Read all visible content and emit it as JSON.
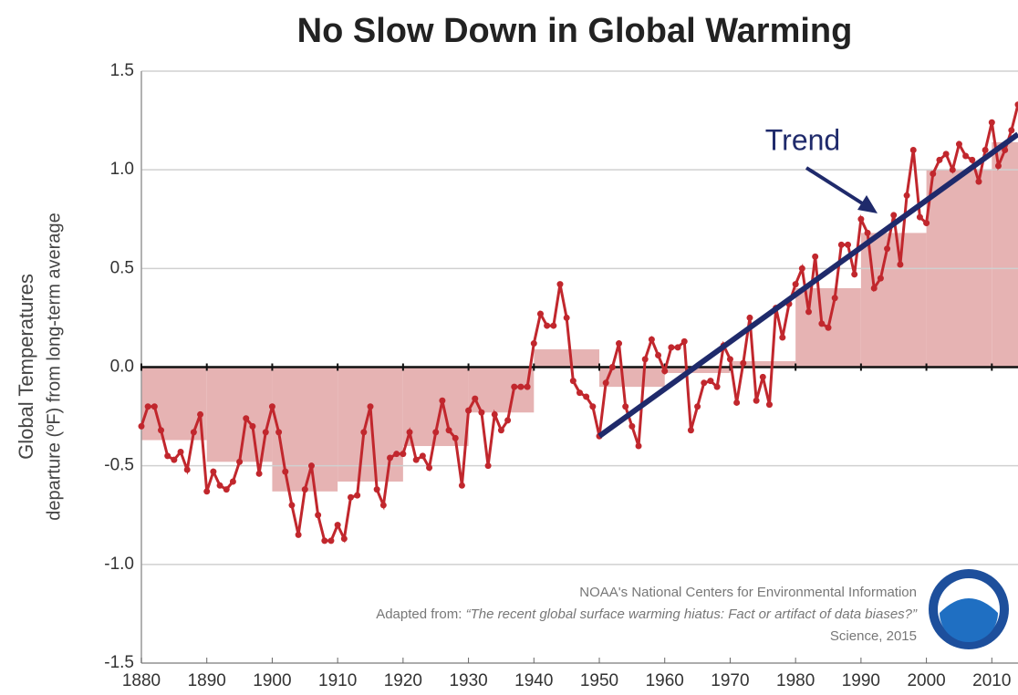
{
  "chart_data": {
    "type": "line",
    "title": "No Slow Down in Global Warming",
    "y_label": [
      "Global Temperatures",
      "departure (ºF) from long-term average"
    ],
    "xlim": [
      1880,
      2014
    ],
    "xticks": [
      1880,
      1890,
      1900,
      1910,
      1920,
      1930,
      1940,
      1950,
      1960,
      1970,
      1980,
      1990,
      2000,
      2010
    ],
    "ylim": [
      -1.5,
      1.5
    ],
    "yticks": [
      1.5,
      {
        "value": 1,
        "label": "1.0"
      },
      0.5,
      {
        "value": 0,
        "label": "0.0"
      },
      -0.5,
      {
        "value": -1,
        "label": "-1.0"
      },
      -1.5
    ],
    "grid": true,
    "color": "#c1272d",
    "x": [
      1880,
      1881,
      1882,
      1883,
      1884,
      1885,
      1886,
      1887,
      1888,
      1889,
      1890,
      1891,
      1892,
      1893,
      1894,
      1895,
      1896,
      1897,
      1898,
      1899,
      1900,
      1901,
      1902,
      1903,
      1904,
      1905,
      1906,
      1907,
      1908,
      1909,
      1910,
      1911,
      1912,
      1913,
      1914,
      1915,
      1916,
      1917,
      1918,
      1919,
      1920,
      1921,
      1922,
      1923,
      1924,
      1925,
      1926,
      1927,
      1928,
      1929,
      1930,
      1931,
      1932,
      1933,
      1934,
      1935,
      1936,
      1937,
      1938,
      1939,
      1940,
      1941,
      1942,
      1943,
      1944,
      1945,
      1946,
      1947,
      1948,
      1949,
      1950,
      1951,
      1952,
      1953,
      1954,
      1955,
      1956,
      1957,
      1958,
      1959,
      1960,
      1961,
      1962,
      1963,
      1964,
      1965,
      1966,
      1967,
      1968,
      1969,
      1970,
      1971,
      1972,
      1973,
      1974,
      1975,
      1976,
      1977,
      1978,
      1979,
      1980,
      1981,
      1982,
      1983,
      1984,
      1985,
      1986,
      1987,
      1988,
      1989,
      1990,
      1991,
      1992,
      1993,
      1994,
      1995,
      1996,
      1997,
      1998,
      1999,
      2000,
      2001,
      2002,
      2003,
      2004,
      2005,
      2006,
      2007,
      2008,
      2009,
      2010,
      2011,
      2012,
      2013,
      2014
    ],
    "values": [
      -0.3,
      -0.2,
      -0.2,
      -0.32,
      -0.45,
      -0.47,
      -0.43,
      -0.52,
      -0.33,
      -0.24,
      -0.63,
      -0.53,
      -0.6,
      -0.62,
      -0.58,
      -0.48,
      -0.26,
      -0.3,
      -0.54,
      -0.33,
      -0.2,
      -0.33,
      -0.53,
      -0.7,
      -0.85,
      -0.62,
      -0.5,
      -0.75,
      -0.88,
      -0.88,
      -0.8,
      -0.87,
      -0.66,
      -0.65,
      -0.33,
      -0.2,
      -0.62,
      -0.7,
      -0.46,
      -0.44,
      -0.44,
      -0.33,
      -0.47,
      -0.45,
      -0.51,
      -0.33,
      -0.17,
      -0.32,
      -0.36,
      -0.6,
      -0.22,
      -0.16,
      -0.23,
      -0.5,
      -0.24,
      -0.32,
      -0.27,
      -0.1,
      -0.1,
      -0.1,
      0.12,
      0.27,
      0.21,
      0.21,
      0.42,
      0.25,
      -0.07,
      -0.13,
      -0.15,
      -0.2,
      -0.35,
      -0.08,
      0,
      0.12,
      -0.2,
      -0.3,
      -0.4,
      0.04,
      0.14,
      0.06,
      -0.02,
      0.1,
      0.1,
      0.13,
      -0.32,
      -0.2,
      -0.08,
      -0.07,
      -0.1,
      0.11,
      0.04,
      -0.18,
      0.02,
      0.25,
      -0.17,
      -0.05,
      -0.19,
      0.3,
      0.15,
      0.32,
      0.42,
      0.5,
      0.28,
      0.56,
      0.22,
      0.2,
      0.35,
      0.62,
      0.62,
      0.47,
      0.75,
      0.68,
      0.4,
      0.45,
      0.6,
      0.77,
      0.52,
      0.87,
      1.1,
      0.76,
      0.73,
      0.98,
      1.05,
      1.08,
      1.0,
      1.13,
      1.07,
      1.05,
      0.94,
      1.1,
      1.24,
      1.02,
      1.1,
      1.2,
      1.33
    ],
    "bars": {
      "x": [
        1880,
        1890,
        1900,
        1910,
        1920,
        1930,
        1940,
        1950,
        1960,
        1970,
        1980,
        1990,
        2000,
        2010
      ],
      "width": 10,
      "values": [
        -0.37,
        -0.48,
        -0.63,
        -0.58,
        -0.4,
        -0.23,
        0.09,
        -0.1,
        -0.03,
        0.03,
        0.4,
        0.68,
        1.0,
        1.14
      ],
      "color": "#e6b3b3"
    },
    "trend": {
      "x": [
        1950,
        2014
      ],
      "values": [
        -0.35,
        1.18
      ],
      "color": "#1f2a6b",
      "label": "Trend"
    },
    "credits": [
      "NOAA's National Centers for Environmental Information",
      "Adapted from: ",
      "“The recent global surface warming hiatus: Fact or artifact of data biases?”",
      "Science, 2015"
    ]
  }
}
